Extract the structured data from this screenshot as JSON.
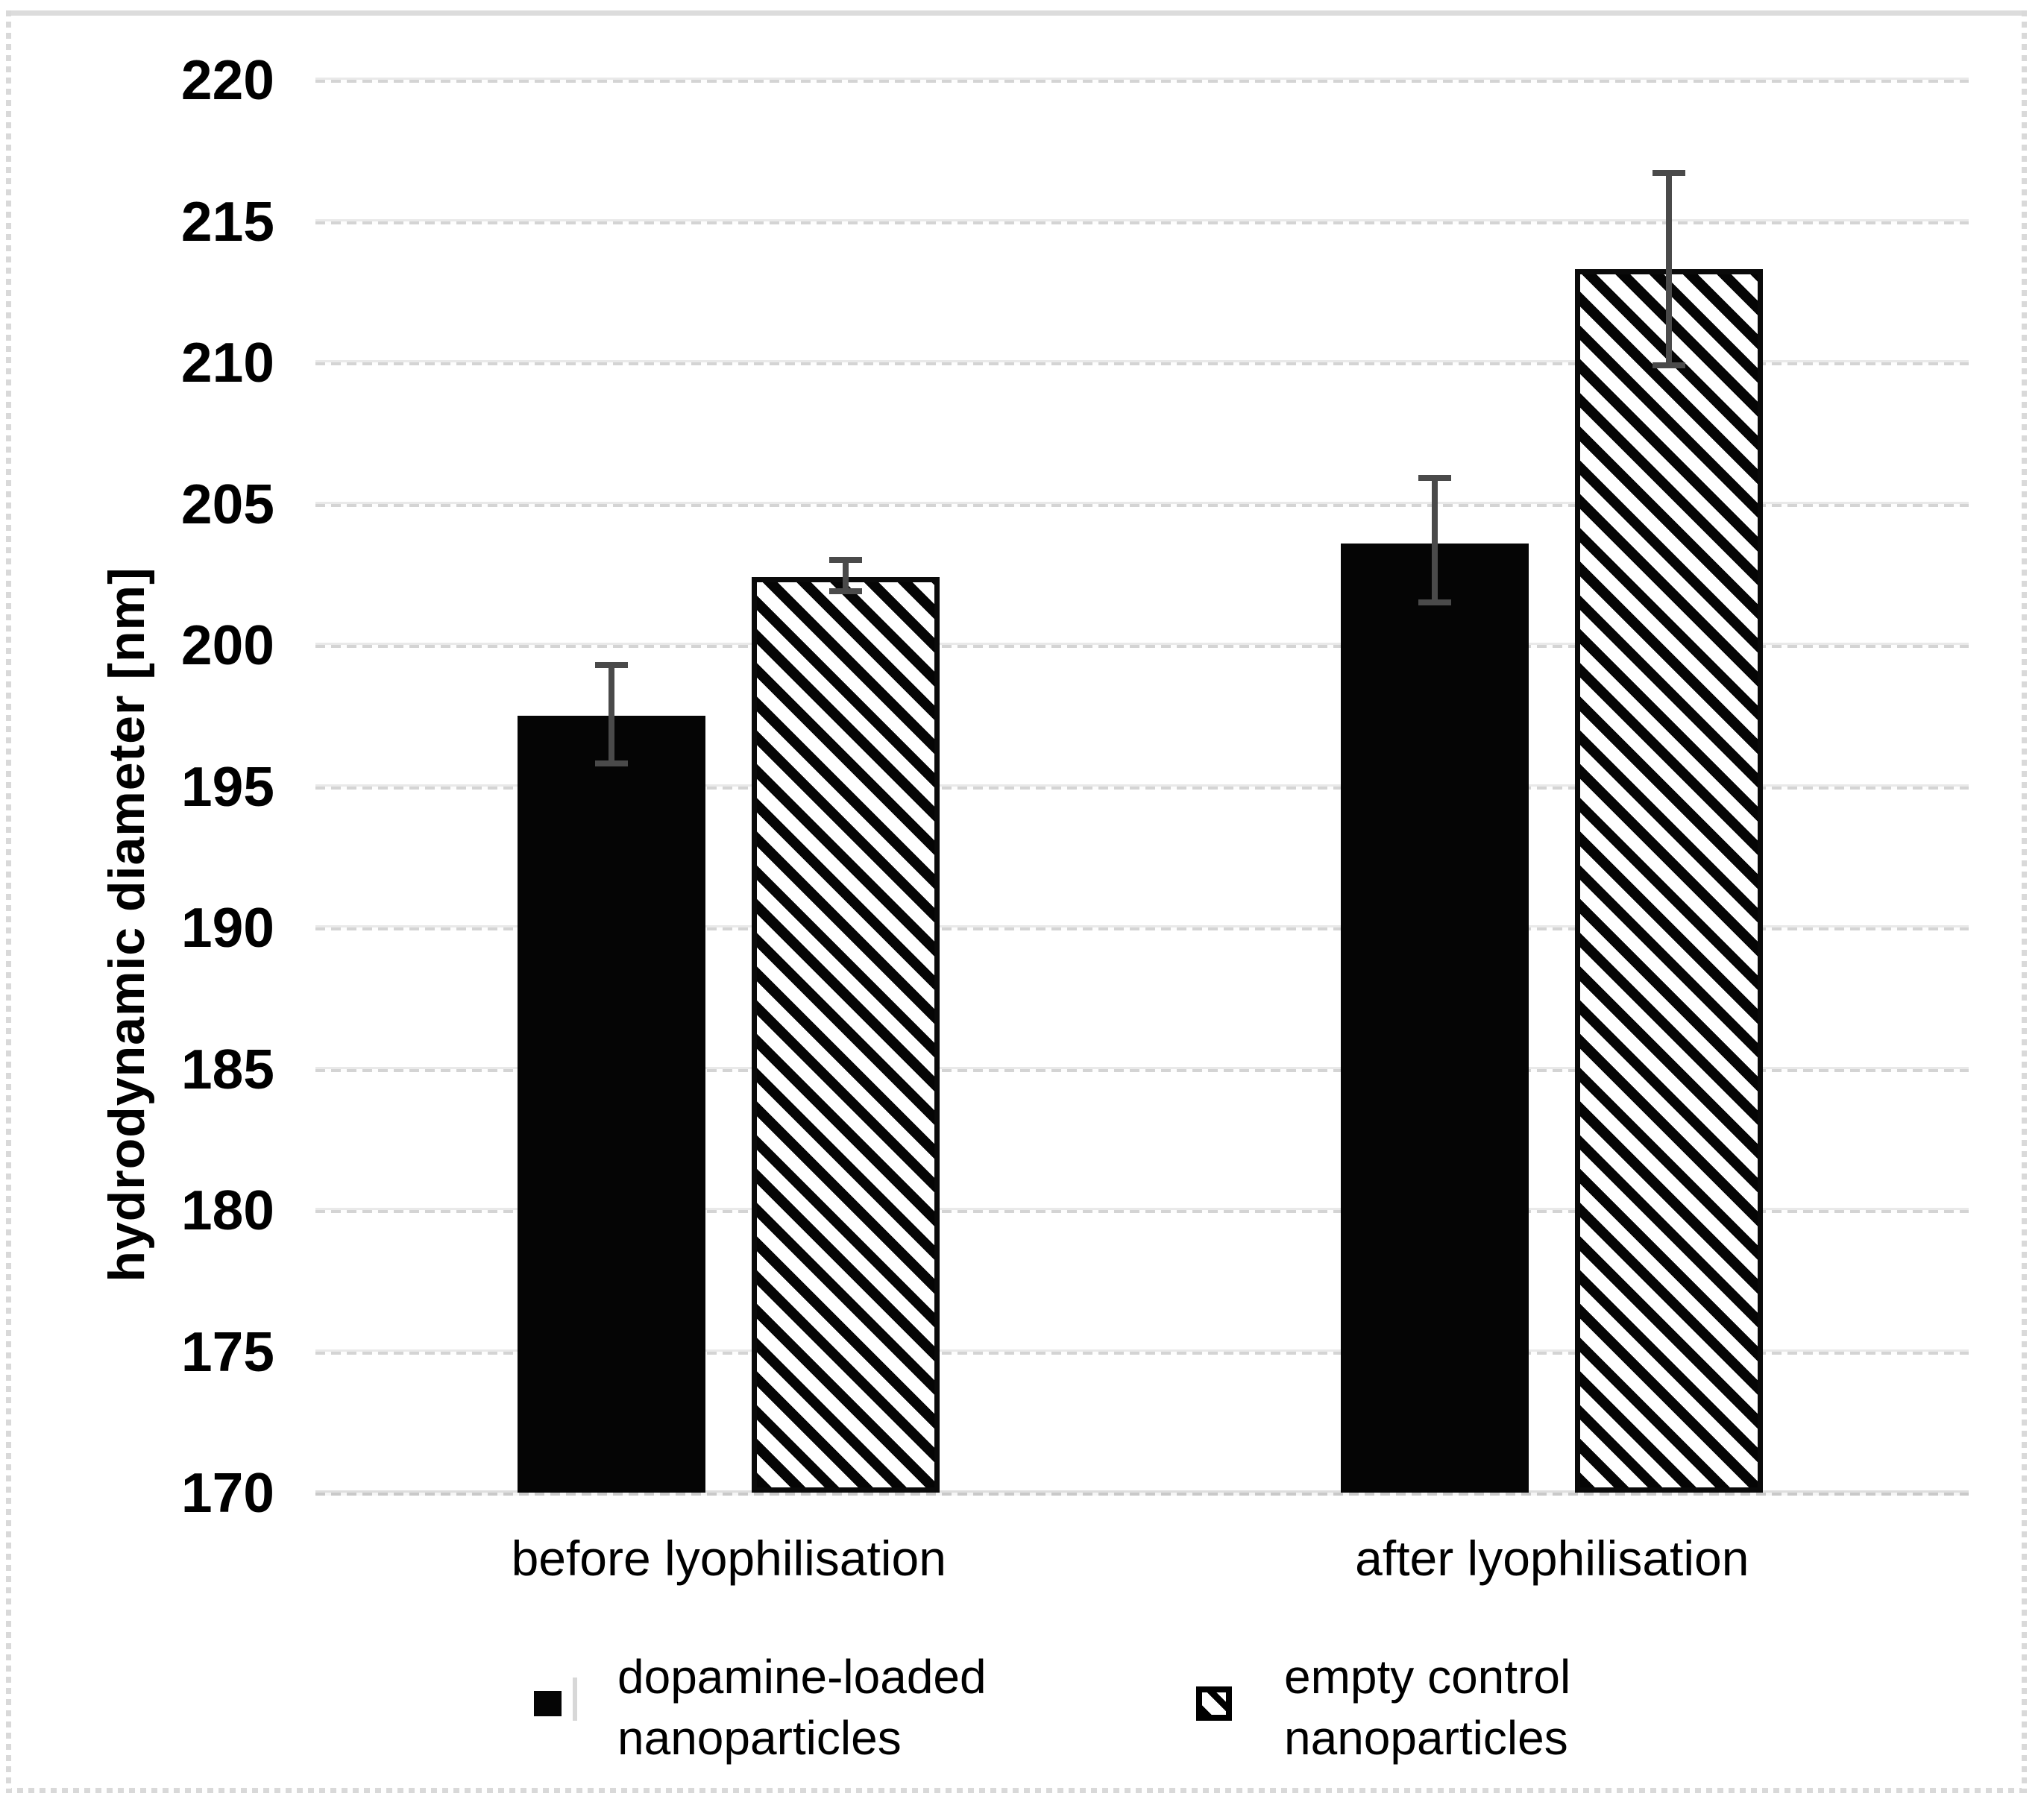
{
  "chart_data": {
    "type": "bar",
    "title": "",
    "xlabel": "",
    "ylabel": "hydrodynamic diameter [nm]",
    "ylim": [
      170,
      220
    ],
    "ytick_step": 5,
    "yticks": [
      170,
      175,
      180,
      185,
      190,
      195,
      200,
      205,
      210,
      215,
      220
    ],
    "categories": [
      "before lyophilisation",
      "after lyophilisation"
    ],
    "series": [
      {
        "name": "dopamine-loaded nanoparticles",
        "legend_lines": [
          "dopamine-loaded",
          "nanoparticles"
        ],
        "style": "solid-black",
        "values": [
          197.5,
          203.6
        ],
        "err_up": [
          1.8,
          2.3
        ],
        "err_down": [
          1.7,
          2.1
        ]
      },
      {
        "name": "empty control nanoparticles",
        "legend_lines": [
          "empty control",
          "nanoparticles"
        ],
        "style": "diagonal-hatch",
        "values": [
          202.4,
          213.3
        ],
        "err_up": [
          0.6,
          3.4
        ],
        "err_down": [
          0.5,
          3.4
        ]
      }
    ],
    "error_bars": true,
    "grid": true,
    "legend_position": "bottom"
  },
  "colors": {
    "bar_fill": "#050505",
    "hatch_background": "#ffffff",
    "error_bar": "#4a4a4a",
    "gridline": "#d9d9d9",
    "figure_border": "#dcdcdc",
    "text": "#000000"
  }
}
